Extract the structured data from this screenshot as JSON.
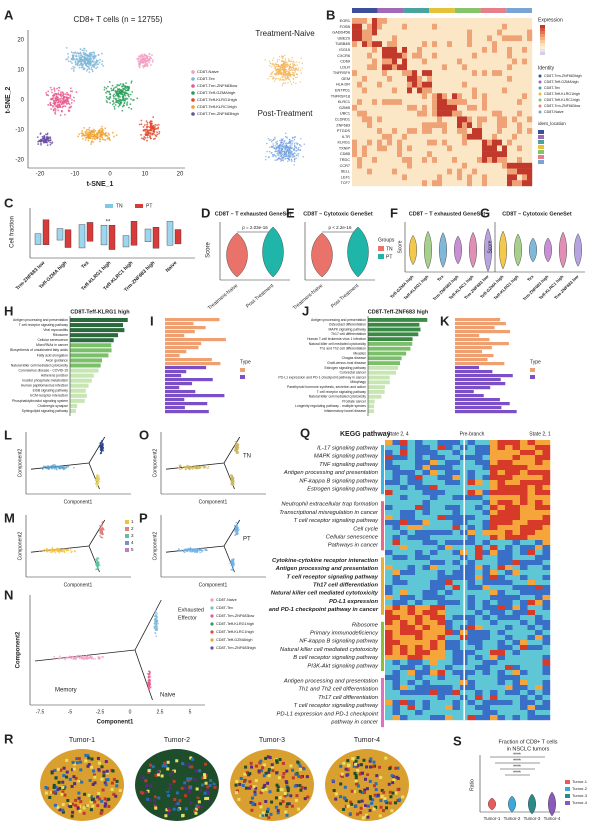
{
  "A": {
    "letter": "A",
    "title": "CD8+ T cells (n = 12755)",
    "xlabel": "t-SNE_1",
    "ylabel": "t-SNE_2",
    "xticks": [
      "-20",
      "-10",
      "0",
      "10",
      "20"
    ],
    "yticks": [
      "20",
      "10",
      "0",
      "-10",
      "-20"
    ],
    "legend": [
      "CD8T-Naive",
      "CD8T-Tex",
      "CD8T-Trm-ZNF683low",
      "CD8T-Teff-GZMAhigh",
      "CD8T-Teff-KLRG1high",
      "CD8T-Teff-KLRC1high",
      "CD8T-Trm-ZNF683high"
    ],
    "inset_top": "Treatment-Naive",
    "inset_bottom": "Post-Treatment"
  },
  "B": {
    "letter": "B",
    "genes": [
      "EGR1",
      "FOSB",
      "GADD45B",
      "UBE2S",
      "TUBB4B",
      "ISG15",
      "CXCR6",
      "CD69",
      "LDLR",
      "TNFRSF9",
      "GEM",
      "HLA-DR",
      "ENTPD1",
      "TNFRSF18",
      "KLRC1",
      "GZMB",
      "UBC1",
      "CLDND1",
      "ZNF683",
      "PTGDS",
      "IL7R",
      "KLRG1",
      "TXNIP",
      "CD8B",
      "TRDC",
      "CCR7",
      "SELL",
      "LEF1",
      "TCF7"
    ],
    "legend_expression": "Expression",
    "legend_identity": "Identity",
    "identity": [
      "CD8T-Trm-ZNF683high",
      "CD8T-Teff-GZMAhigh",
      "CD8T-Tex",
      "CD8T-Teff-KLRG1high",
      "CD8T-Teff-KLRC1high",
      "CD8T-Trm-ZNF683low",
      "CD8T-Naive"
    ],
    "legend_location": "ident_location"
  },
  "C": {
    "letter": "C",
    "ylabel": "Cell fraction",
    "legend": [
      "TN",
      "PT"
    ],
    "categories": [
      "Trm-ZNF683 low",
      "Teff-GZMA high",
      "Tex",
      "Teff-KLRG1 high",
      "Teff-KLRC1 high",
      "Trm-ZNF683 high",
      "Naive"
    ],
    "sig": "**"
  },
  "D": {
    "letter": "D",
    "title": "CD8T – T exhausted GeneSet",
    "p": "p = 2.03e-16",
    "ylabel": "Score",
    "categories": [
      "Treatment-Naive",
      "Post-Treatment"
    ]
  },
  "E": {
    "letter": "E",
    "title": "CD8T – Cytotoxic GeneSet",
    "p": "p < 2.2e-16",
    "categories": [
      "Treatment-Naive",
      "Post-Treatment"
    ],
    "legend_title": "Groups",
    "legend": [
      "TN",
      "PT"
    ]
  },
  "F": {
    "letter": "F",
    "title": "CD8T – T exhausted GeneSet",
    "ylabel": "Score",
    "categories": [
      "Teff-GZMA high",
      "Teff-KLRG1 high",
      "Tex",
      "Trm-ZNF683 high",
      "Teff-KLRC1 high",
      "Trm-ZNF683 low"
    ]
  },
  "G": {
    "letter": "G",
    "title": "CD8T – Cytotoxic GeneSet",
    "ylabel": "Score",
    "categories": [
      "Teff-GZMA high",
      "Teff-KLRG1 high",
      "Tex",
      "Trm-ZNF683 high",
      "Teff-KLRC1 high",
      "Trm-ZNF683 low"
    ]
  },
  "H": {
    "letter": "H",
    "title": "CD8T-Teff-KLRG1 high",
    "pathways": [
      "Antigen processing and presentation",
      "T cell receptor signaling pathway",
      "Viral myocarditis",
      "Ribosome",
      "Cellular senescence",
      "MicroRNAs in cancer",
      "Biosynthesis of unsaturated fatty acids",
      "Fatty acid elongation",
      "Axon guidance",
      "Natural killer cell mediated cytotoxicity",
      "Coronavirus disease - COVID-19",
      "Adherens junction",
      "Inositol phosphate metabolism",
      "Human papillomavirus infection",
      "ErbB signaling pathway",
      "ECM-receptor interaction",
      "Phosphatidylinositol signaling system",
      "Cholinergic synapse",
      "Sphingolipid signaling pathway"
    ]
  },
  "I": {
    "letter": "I",
    "legend_title": "Type"
  },
  "J": {
    "letter": "J",
    "title": "CD8T-Teff-ZNF683 high",
    "pathways": [
      "Antigen processing and presentation",
      "Osteoclast differentiation",
      "MAPK signaling pathway",
      "Th17 cell differentiation",
      "Human T-cell leukemia virus 1 infection",
      "Natural killer cell mediated cytotoxicity",
      "Th1 and Th2 cell differentiation",
      "Measles",
      "Chagas disease",
      "Graft-versus-host disease",
      "Estrogen signaling pathway",
      "Colorectal cancer",
      "PD-L1 expression and PD-1 checkpoint pathway in cancer",
      "Mitophagy",
      "Parathyroid hormone synthesis, secretion and action",
      "T cell receptor signaling pathway",
      "Natural killer cell mediated cytotoxicity",
      "Prostate cancer",
      "Longevity regulating pathway - multiple species",
      "Inflammatory bowel disease"
    ]
  },
  "K": {
    "letter": "K",
    "legend_title": "Type"
  },
  "L": {
    "letter": "L",
    "xlabel": "Component1",
    "ylabel": "Component2"
  },
  "O": {
    "letter": "O",
    "xlabel": "Component1",
    "ylabel": "Component2",
    "tag": "TN"
  },
  "M": {
    "letter": "M",
    "xlabel": "Component1",
    "ylabel": "Component2",
    "legend": [
      "1",
      "2",
      "3",
      "4",
      "5"
    ]
  },
  "P": {
    "letter": "P",
    "xlabel": "Component1",
    "ylabel": "Component2",
    "tag": "PT"
  },
  "N": {
    "letter": "N",
    "xlabel": "Component1",
    "ylabel": "Component2",
    "xticks": [
      "-7.5",
      "-5",
      "-2.5",
      "0",
      "2.5",
      "5"
    ],
    "legend": [
      "CD8T-Naive",
      "CD8T-Tex",
      "CD8T-Trm-ZNF683low",
      "CD8T-Teff-KLRG1high",
      "CD8T-Teff-KLRC1high",
      "CD8T-Teff-GZMAhigh",
      "CD8T-Trm-ZNF683high"
    ],
    "exhausted": "Exhausted",
    "effector": "Effector",
    "memory": "Memory",
    "naive": "Naive"
  },
  "Q": {
    "letter": "Q",
    "title": "KEGG pathway",
    "state_left": "State 2, 4",
    "pre_branch": "Pre-branch",
    "state_right": "State 2, 1",
    "groups": [
      [
        "IL-17 signaling pathway",
        "MAPK signaling pathway",
        "TNF signaling pathway",
        "Antigen processing and presentation",
        "NF-kappa B signaling pathway",
        "Estrogen signaling pathway"
      ],
      [
        "Neutrophil extracellular trap formation",
        "Transcriptional misregulation in cancer",
        "T cell receptor signaling pathway",
        "Cell cycle",
        "Cellular senescence",
        "Pathways in cancer"
      ],
      [
        "Cytokine-cytokine receptor interaction",
        "Antigen processing and presentation",
        "T cell receptor signaling pathway",
        "Th17 cell differentiation",
        "Natural killer cell mediated cytotoxicity",
        "PD-L1 expression",
        "and PD-1 checkpoint pathway in cancer"
      ],
      [
        "Ribosome",
        "Primary immunodeficiency",
        "NF-kappa B signaling pathway",
        "Natural killer cell mediated cytotoxicity",
        "B cell receptor signaling pathway",
        "PI3K-Akt signaling pathway"
      ],
      [
        "Antigen processing and presentation",
        "Th1 and Th2 cell differentiation",
        "Th17 cell differentiation",
        "T cell receptor signaling pathway",
        "PD-L1 expression and PD-1 checkpoint",
        "pathway in cancer"
      ]
    ]
  },
  "R": {
    "letter": "R",
    "tumors": [
      "Tumor-1",
      "Tumor-2",
      "Tumor-3",
      "Tumor-4"
    ]
  },
  "S": {
    "letter": "S",
    "title": [
      "Fraction of CD8+ T cells",
      "in NSCLC tumors"
    ],
    "ylabel": "Ratio",
    "sig": [
      "****",
      "****",
      "****",
      "****"
    ],
    "categories": [
      "Tumor-1",
      "Tumor-2",
      "Tumor-3",
      "Tumor-4"
    ]
  }
}
